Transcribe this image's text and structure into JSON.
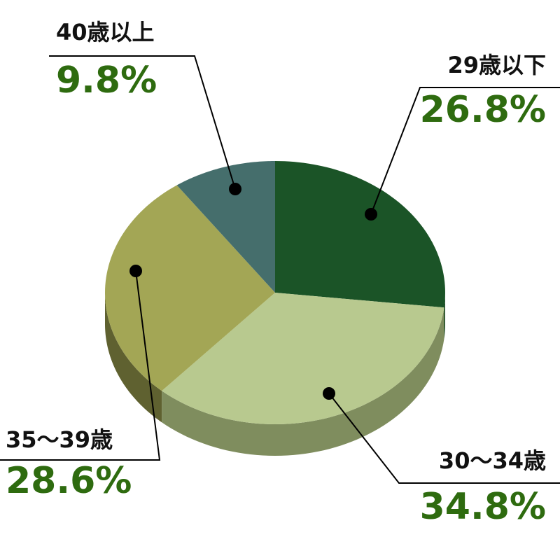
{
  "chart_data": {
    "type": "pie",
    "categories": [
      "29歳以下",
      "30〜34歳",
      "35〜39歳",
      "40歳以上"
    ],
    "values": [
      26.8,
      34.8,
      28.6,
      9.8
    ],
    "value_labels": [
      "26.8%",
      "34.8%",
      "28.6%",
      "9.8%"
    ],
    "colors": [
      "#1b5427",
      "#b8c98f",
      "#a3a655",
      "#456e6c"
    ],
    "side_colors": [
      "#1a4a22",
      "#7f8d5e",
      "#5f6130",
      "#2e4b4a"
    ],
    "label_color": "#2e6b0f"
  }
}
